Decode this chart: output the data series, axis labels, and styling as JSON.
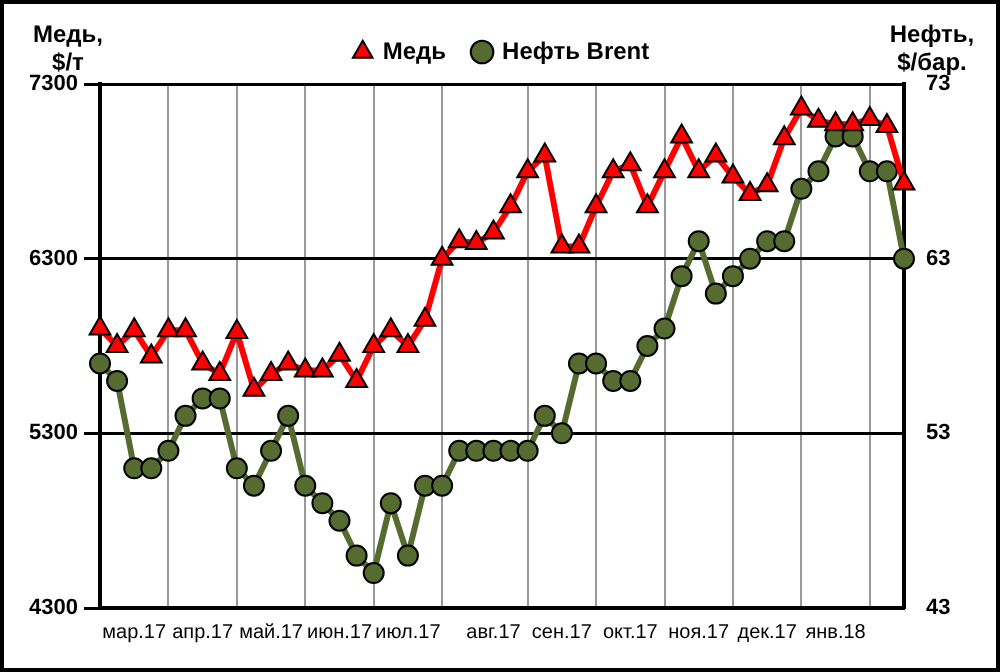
{
  "chart_data": {
    "type": "line",
    "categories": [
      null,
      null,
      "мар.17",
      null,
      null,
      null,
      "апр.17",
      null,
      null,
      null,
      "май.17",
      null,
      null,
      null,
      "июн.17",
      null,
      null,
      null,
      "июл.17",
      null,
      null,
      null,
      null,
      "авг.17",
      null,
      null,
      null,
      "сен.17",
      null,
      null,
      null,
      "окт.17",
      null,
      null,
      null,
      "ноя.17",
      null,
      null,
      null,
      "дек.17",
      null,
      null,
      null,
      "янв.18",
      null,
      null,
      null,
      null
    ],
    "series": [
      {
        "name": "Медь",
        "color": "#ff0000",
        "marker": "triangle",
        "values": [
          5900,
          5800,
          5890,
          5740,
          5890,
          5890,
          5700,
          5640,
          5880,
          5550,
          5640,
          5700,
          5660,
          5660,
          5750,
          5600,
          5800,
          5890,
          5800,
          5950,
          6300,
          6400,
          6390,
          6450,
          6600,
          6800,
          6890,
          6370,
          6370,
          6600,
          6800,
          6840,
          6600,
          6800,
          7000,
          6800,
          6890,
          6770,
          6670,
          6720,
          6990,
          7160,
          7090,
          7070,
          7070,
          7100,
          7060,
          6730
        ]
      },
      {
        "name": "Нефть Brent",
        "color": "#556b2f",
        "marker": "circle",
        "axis": "y2",
        "values": [
          57,
          56,
          51,
          51,
          52,
          54,
          55,
          55,
          51,
          50,
          52,
          54,
          50,
          49,
          48,
          46,
          45,
          49,
          46,
          50,
          50,
          52,
          52,
          52,
          52,
          52,
          54,
          53,
          57,
          57,
          56,
          56,
          58,
          59,
          62,
          64,
          61,
          62,
          63,
          64,
          64,
          67,
          68,
          70,
          70,
          68,
          68,
          63
        ]
      }
    ],
    "ylabel": "Медь, $/т",
    "y2label": "Нефть, $/бар.",
    "ylim": [
      4300,
      7300
    ],
    "yticks": [
      4300,
      5300,
      6300,
      7300
    ],
    "y2lim": [
      43,
      73
    ],
    "y2ticks": [
      43,
      53,
      63,
      73
    ],
    "grid": true,
    "legend": "top",
    "line_style": "solid"
  }
}
